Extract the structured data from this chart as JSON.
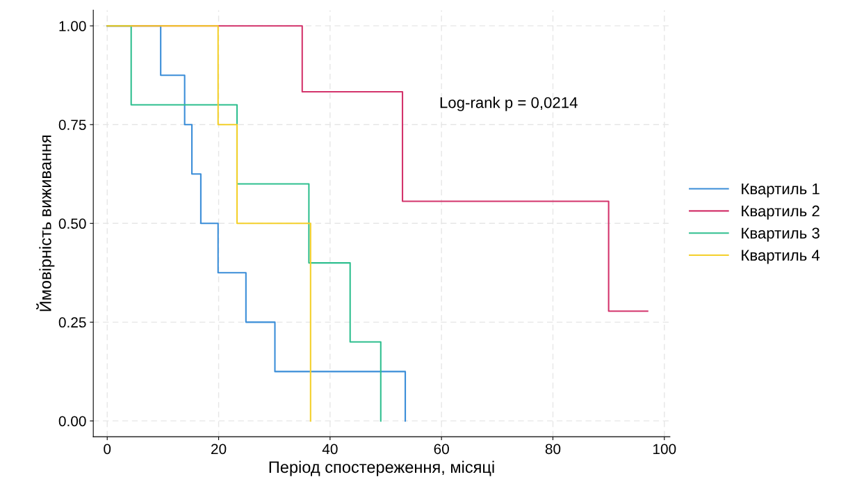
{
  "chart_data": {
    "type": "step",
    "xlabel": "Період спостереження, місяці",
    "ylabel": "Ймовірність виживання",
    "xlim": [
      -2.5,
      101
    ],
    "ylim": [
      -0.04,
      1.04
    ],
    "xticks": [
      0,
      20,
      40,
      60,
      80,
      100
    ],
    "yticks": [
      {
        "value": 0,
        "label": "0.00"
      },
      {
        "value": 0.25,
        "label": "0.25"
      },
      {
        "value": 0.5,
        "label": "0.50"
      },
      {
        "value": 0.75,
        "label": "0.75"
      },
      {
        "value": 1,
        "label": "1.00"
      }
    ],
    "grid": true,
    "legend": "right",
    "line_style": "solid",
    "marker": "none",
    "annotations": [
      "Log-rank p = 0,0214"
    ],
    "series": [
      {
        "name": "Квартиль 1",
        "color": "#3a8dd8",
        "x": [
          0,
          9.6,
          13.9,
          15.2,
          16.8,
          19.9,
          24.9,
          30.1,
          53.5
        ],
        "values": [
          1,
          0.875,
          0.75,
          0.625,
          0.5,
          0.375,
          0.25,
          0.125,
          0
        ]
      },
      {
        "name": "Квартиль 2",
        "color": "#d3336b",
        "x": [
          0,
          35,
          53,
          90,
          97
        ],
        "values": [
          1,
          0.833,
          0.556,
          0.278,
          0.278
        ]
      },
      {
        "name": "Квартиль 3",
        "color": "#2fbf8f",
        "x": [
          0,
          4.3,
          23.3,
          36.2,
          43.6,
          49.1
        ],
        "values": [
          1,
          0.8,
          0.6,
          0.4,
          0.2,
          0
        ]
      },
      {
        "name": "Квартиль 4",
        "color": "#f4d02a",
        "x": [
          0,
          19.9,
          23.3,
          36.5
        ],
        "values": [
          1,
          0.75,
          0.5,
          0
        ]
      }
    ]
  }
}
